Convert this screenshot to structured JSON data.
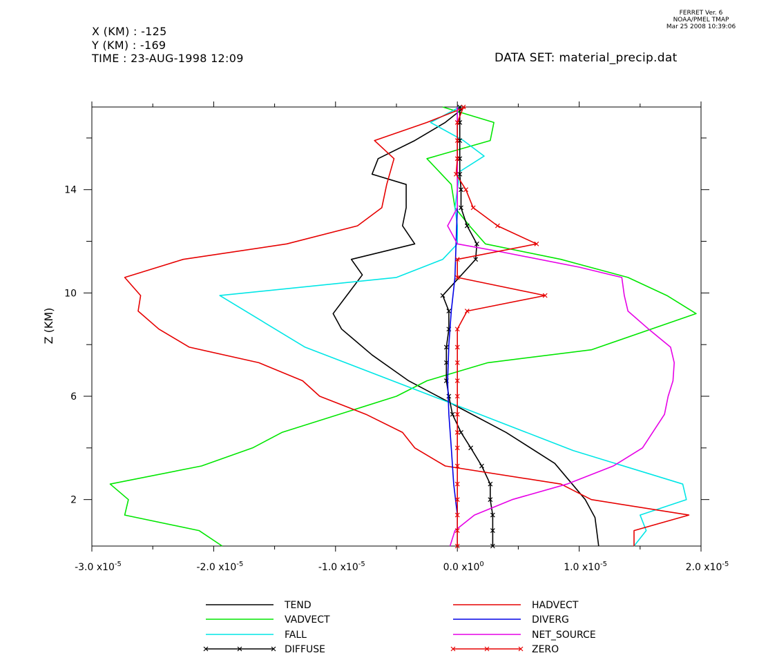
{
  "header": {
    "x_loc": "X (KM) : -125",
    "y_loc": "Y (KM) : -169",
    "time": "TIME : 23-AUG-1998 12:09",
    "dataset": "DATA SET: material_precip.dat"
  },
  "ferret": {
    "line1": "FERRET Ver. 6",
    "line2": "NOAA/PMEL TMAP",
    "line3": "Mar 25 2008 10:39:06"
  },
  "chart_data": {
    "type": "line",
    "ylabel": "Z (KM)",
    "xlim": [
      -3e-05,
      2e-05
    ],
    "ylim": [
      0.2,
      17.2
    ],
    "x_ticks": [
      {
        "value": -3e-05,
        "mant": "-3.0",
        "exp": "-5"
      },
      {
        "value": -2e-05,
        "mant": "-2.0",
        "exp": "-5"
      },
      {
        "value": -1e-05,
        "mant": "-1.0",
        "exp": "-5"
      },
      {
        "value": 0.0,
        "mant": "0.0",
        "exp": "0"
      },
      {
        "value": 1e-05,
        "mant": "1.0",
        "exp": "-5"
      },
      {
        "value": 2e-05,
        "mant": "2.0",
        "exp": "-5"
      }
    ],
    "y_ticks": [
      2,
      6,
      10,
      14
    ],
    "y_minor_ticks": [
      4,
      8,
      12,
      16
    ],
    "grid": false,
    "legend_position": "bottom",
    "series": [
      {
        "name": "TEND",
        "color": "#000000",
        "markers": false,
        "points": [
          [
            6e-07,
            17.2
          ],
          [
            -1e-06,
            16.6
          ],
          [
            -3.5e-06,
            15.9
          ],
          [
            -6.5e-06,
            15.2
          ],
          [
            -7e-06,
            14.6
          ],
          [
            -4.2e-06,
            14.2
          ],
          [
            -4.2e-06,
            13.3
          ],
          [
            -4.5e-06,
            12.6
          ],
          [
            -3.5e-06,
            11.9
          ],
          [
            -8.7e-06,
            11.3
          ],
          [
            -7.8e-06,
            10.7
          ],
          [
            -1.02e-05,
            9.2
          ],
          [
            -9.5e-06,
            8.6
          ],
          [
            -7e-06,
            7.6
          ],
          [
            -4e-06,
            6.6
          ],
          [
            0.0,
            5.6
          ],
          [
            4e-06,
            4.6
          ],
          [
            8e-06,
            3.4
          ],
          [
            1.05e-05,
            2.0
          ],
          [
            1.13e-05,
            1.3
          ],
          [
            1.16e-05,
            0.2
          ]
        ]
      },
      {
        "name": "VADVECT",
        "color": "#00e600",
        "markers": false,
        "points": [
          [
            -1.2e-06,
            17.2
          ],
          [
            3e-06,
            16.6
          ],
          [
            2.7e-06,
            15.9
          ],
          [
            -2.5e-06,
            15.2
          ],
          [
            -5e-07,
            14.2
          ],
          [
            -2e-07,
            13.3
          ],
          [
            1e-06,
            12.6
          ],
          [
            2.3e-06,
            11.9
          ],
          [
            8.5e-06,
            11.3
          ],
          [
            1.4e-05,
            10.6
          ],
          [
            1.72e-05,
            9.9
          ],
          [
            1.96e-05,
            9.2
          ],
          [
            1.1e-05,
            7.8
          ],
          [
            2.5e-06,
            7.3
          ],
          [
            -2.5e-06,
            6.6
          ],
          [
            -5e-06,
            6.0
          ],
          [
            -1.44e-05,
            4.6
          ],
          [
            -1.68e-05,
            4.0
          ],
          [
            -2.1e-05,
            3.3
          ],
          [
            -2.85e-05,
            2.6
          ],
          [
            -2.7e-05,
            2.0
          ],
          [
            -2.73e-05,
            1.4
          ],
          [
            -2.12e-05,
            0.8
          ],
          [
            -1.93e-05,
            0.2
          ]
        ]
      },
      {
        "name": "FALL",
        "color": "#00e6e6",
        "markers": false,
        "points": [
          [
            2e-07,
            17.2
          ],
          [
            -2.2e-06,
            16.6
          ],
          [
            5e-07,
            15.9
          ],
          [
            2.2e-06,
            15.3
          ],
          [
            2e-07,
            14.7
          ],
          [
            -2e-07,
            13.3
          ],
          [
            0.0,
            12.6
          ],
          [
            0.0,
            11.9
          ],
          [
            -1.2e-06,
            11.3
          ],
          [
            -5e-06,
            10.6
          ],
          [
            -1.95e-05,
            9.9
          ],
          [
            -1.25e-05,
            7.9
          ],
          [
            2e-07,
            5.6
          ],
          [
            9.5e-06,
            3.9
          ],
          [
            1.85e-05,
            2.6
          ],
          [
            1.88e-05,
            2.0
          ],
          [
            1.5e-05,
            1.4
          ],
          [
            1.55e-05,
            0.8
          ],
          [
            1.45e-05,
            0.2
          ]
        ]
      },
      {
        "name": "DIFFUSE",
        "color": "#000000",
        "markers": true,
        "points": [
          [
            2e-07,
            17.2
          ],
          [
            2e-07,
            16.6
          ],
          [
            2e-07,
            15.9
          ],
          [
            2e-07,
            15.2
          ],
          [
            2e-07,
            14.6
          ],
          [
            3e-07,
            14.0
          ],
          [
            3e-07,
            13.3
          ],
          [
            8e-07,
            12.6
          ],
          [
            1.6e-06,
            11.9
          ],
          [
            1.5e-06,
            11.3
          ],
          [
            -1.2e-06,
            9.9
          ],
          [
            -7e-07,
            9.3
          ],
          [
            -7e-07,
            8.6
          ],
          [
            -9e-07,
            7.9
          ],
          [
            -9e-07,
            7.3
          ],
          [
            -9e-07,
            6.6
          ],
          [
            -7e-07,
            6.0
          ],
          [
            -4e-07,
            5.3
          ],
          [
            3e-07,
            4.6
          ],
          [
            1.1e-06,
            4.0
          ],
          [
            2e-06,
            3.3
          ],
          [
            2.7e-06,
            2.6
          ],
          [
            2.7e-06,
            2.0
          ],
          [
            2.9e-06,
            1.4
          ],
          [
            2.9e-06,
            0.8
          ],
          [
            2.9e-06,
            0.2
          ]
        ]
      },
      {
        "name": "HADVECT",
        "color": "#e60000",
        "markers": false,
        "points": [
          [
            7e-07,
            17.2
          ],
          [
            -2.5e-06,
            16.6
          ],
          [
            -6.8e-06,
            15.9
          ],
          [
            -5.2e-06,
            15.2
          ],
          [
            -5.8e-06,
            14.2
          ],
          [
            -6.2e-06,
            13.3
          ],
          [
            -8.2e-06,
            12.6
          ],
          [
            -1.4e-05,
            11.9
          ],
          [
            -2.25e-05,
            11.3
          ],
          [
            -2.73e-05,
            10.6
          ],
          [
            -2.6e-05,
            9.9
          ],
          [
            -2.62e-05,
            9.3
          ],
          [
            -2.45e-05,
            8.6
          ],
          [
            -2.2e-05,
            7.9
          ],
          [
            -1.63e-05,
            7.3
          ],
          [
            -1.27e-05,
            6.6
          ],
          [
            -1.13e-05,
            6.0
          ],
          [
            -7.5e-06,
            5.3
          ],
          [
            -4.5e-06,
            4.6
          ],
          [
            -3.5e-06,
            4.0
          ],
          [
            -1e-06,
            3.3
          ],
          [
            8.5e-06,
            2.6
          ],
          [
            1.1e-05,
            2.0
          ],
          [
            1.9e-05,
            1.4
          ],
          [
            1.45e-05,
            0.8
          ],
          [
            1.45e-05,
            0.2
          ]
        ]
      },
      {
        "name": "DIVERG",
        "color": "#0000e6",
        "markers": false,
        "points": [
          [
            0.0,
            17.2
          ],
          [
            0.0,
            15.9
          ],
          [
            0.0,
            14.6
          ],
          [
            0.0,
            13.3
          ],
          [
            -1e-07,
            12.0
          ],
          [
            -2e-07,
            10.6
          ],
          [
            -5e-07,
            9.3
          ],
          [
            -7e-07,
            8.0
          ],
          [
            -8e-07,
            6.6
          ],
          [
            -7e-07,
            5.3
          ],
          [
            -5e-07,
            4.0
          ],
          [
            -3e-07,
            2.6
          ],
          [
            0.0,
            1.4
          ],
          [
            0.0,
            0.2
          ]
        ]
      },
      {
        "name": "NET_SOURCE",
        "color": "#e600e6",
        "markers": false,
        "points": [
          [
            0.0,
            17.2
          ],
          [
            0.0,
            16.0
          ],
          [
            0.0,
            14.6
          ],
          [
            0.0,
            13.3
          ],
          [
            -8e-07,
            12.6
          ],
          [
            0.0,
            11.9
          ],
          [
            3.5e-06,
            11.6
          ],
          [
            1e-05,
            11.0
          ],
          [
            1.35e-05,
            10.6
          ],
          [
            1.37e-05,
            9.9
          ],
          [
            1.4e-05,
            9.3
          ],
          [
            1.57e-05,
            8.6
          ],
          [
            1.75e-05,
            7.9
          ],
          [
            1.78e-05,
            7.3
          ],
          [
            1.77e-05,
            6.6
          ],
          [
            1.73e-05,
            6.0
          ],
          [
            1.7e-05,
            5.3
          ],
          [
            1.52e-05,
            4.0
          ],
          [
            1.28e-05,
            3.3
          ],
          [
            9e-06,
            2.6
          ],
          [
            4.5e-06,
            2.0
          ],
          [
            1.4e-06,
            1.4
          ],
          [
            -2e-07,
            0.8
          ],
          [
            -6e-07,
            0.2
          ]
        ]
      },
      {
        "name": "ZERO",
        "color": "#e60000",
        "markers": true,
        "points": [
          [
            5e-07,
            17.2
          ],
          [
            0.0,
            16.6
          ],
          [
            0.0,
            15.9
          ],
          [
            0.0,
            15.2
          ],
          [
            -1e-07,
            14.6
          ],
          [
            7e-07,
            14.0
          ],
          [
            1.3e-06,
            13.3
          ],
          [
            3.3e-06,
            12.6
          ],
          [
            6.5e-06,
            11.9
          ],
          [
            0.0,
            11.3
          ],
          [
            0.0,
            10.6
          ],
          [
            7.2e-06,
            9.9
          ],
          [
            8e-07,
            9.3
          ],
          [
            0.0,
            8.6
          ],
          [
            0.0,
            7.9
          ],
          [
            0.0,
            7.3
          ],
          [
            0.0,
            6.6
          ],
          [
            0.0,
            6.0
          ],
          [
            0.0,
            5.3
          ],
          [
            0.0,
            4.6
          ],
          [
            0.0,
            4.0
          ],
          [
            0.0,
            3.3
          ],
          [
            0.0,
            2.6
          ],
          [
            0.0,
            2.0
          ],
          [
            0.0,
            1.4
          ],
          [
            0.0,
            0.8
          ],
          [
            0.0,
            0.2
          ]
        ]
      }
    ]
  }
}
